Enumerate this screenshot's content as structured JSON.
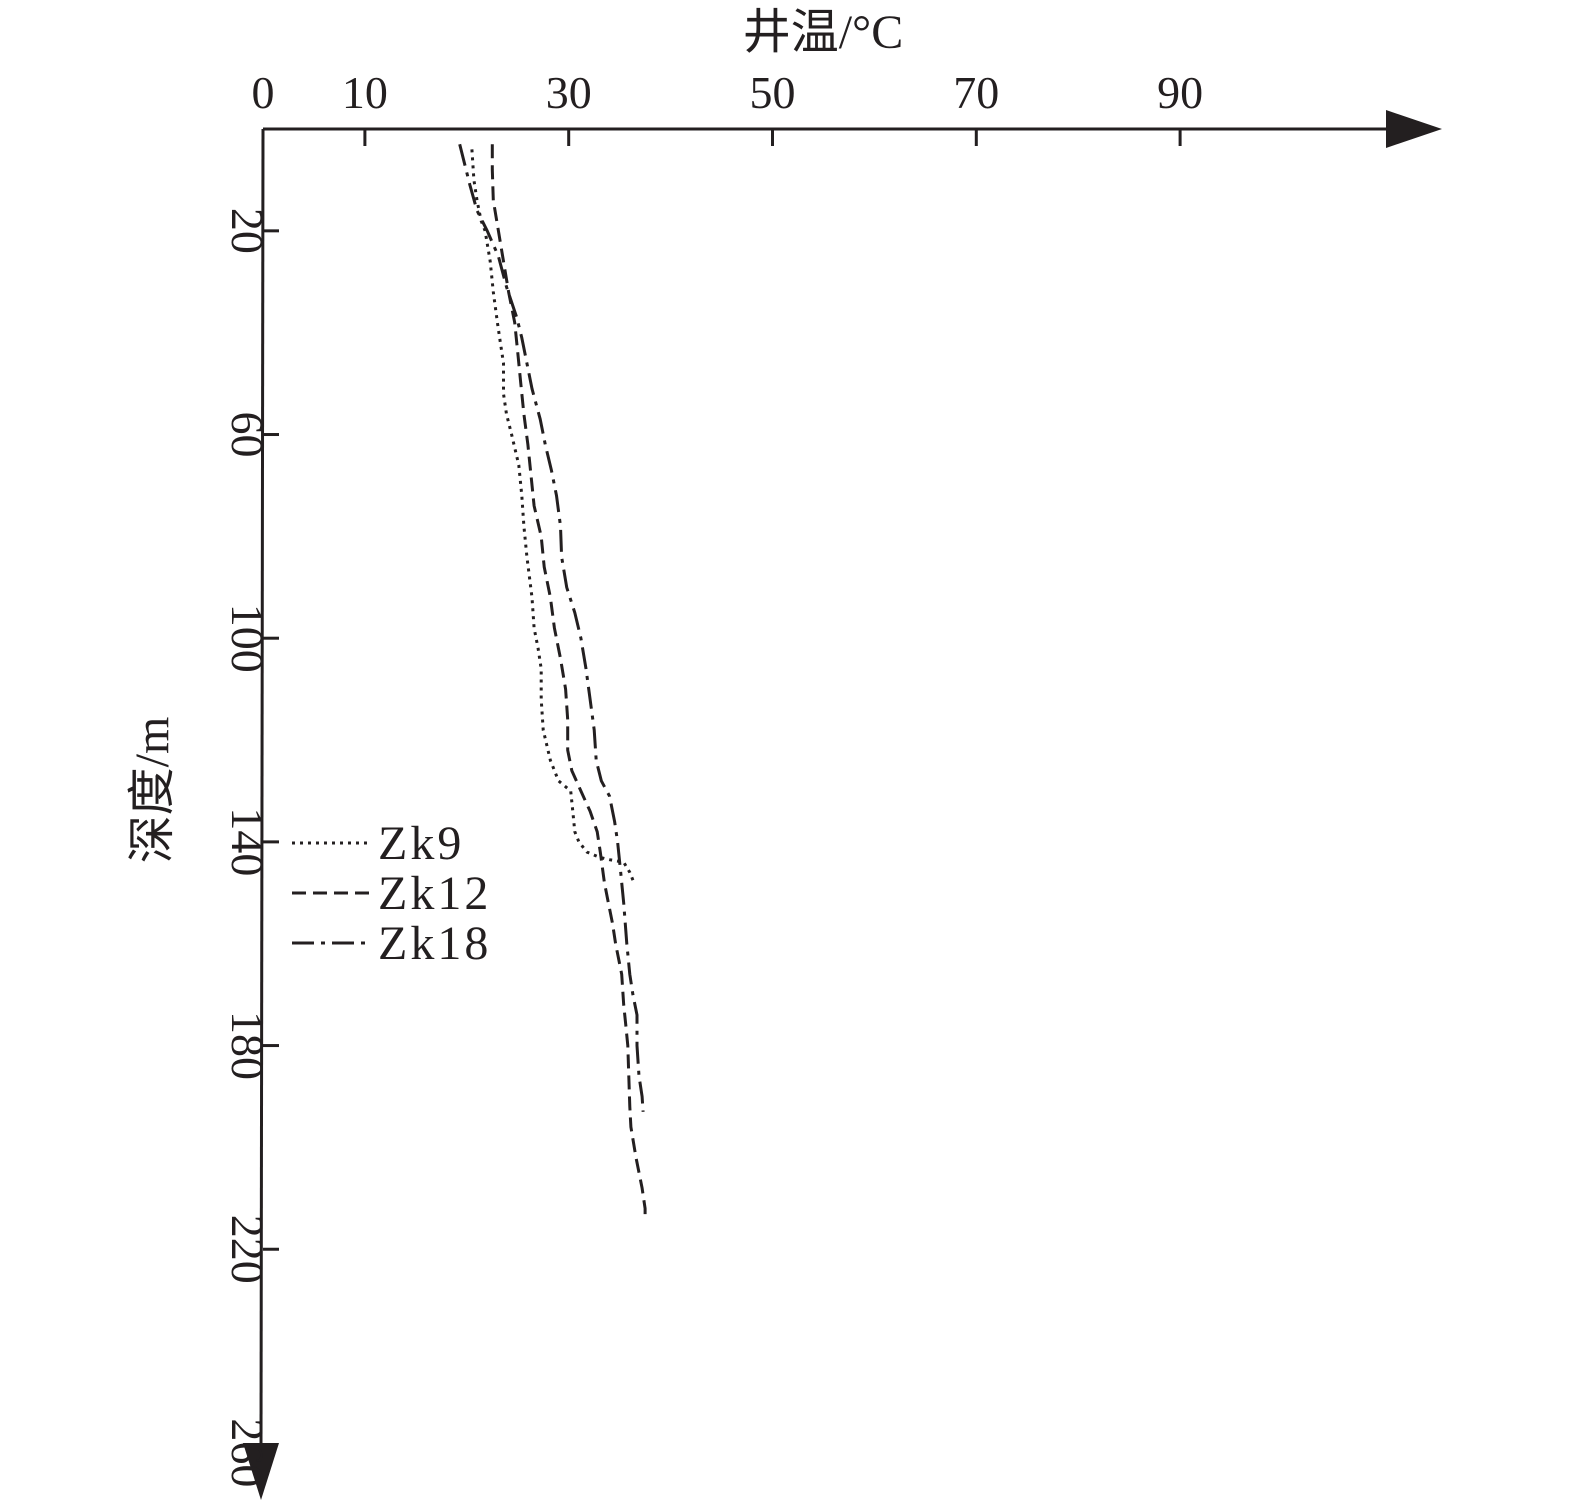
{
  "chart_data": {
    "type": "line",
    "title": "",
    "xlabel": "井温/°C",
    "ylabel": "深度/m",
    "x_axis_position": "top",
    "y_axis_inverted": true,
    "xlim": [
      0,
      117
    ],
    "ylim": [
      0,
      260
    ],
    "x_ticks": [
      0,
      10,
      30,
      50,
      70,
      90
    ],
    "y_ticks": [
      20,
      60,
      100,
      140,
      180,
      220,
      260
    ],
    "grid": false,
    "legend_position": "left-middle",
    "series": [
      {
        "name": "Zk9",
        "style": "dotted",
        "color": "#231f20",
        "points": [
          [
            20.5,
            4
          ],
          [
            20.7,
            10
          ],
          [
            21.0,
            14
          ],
          [
            21.4,
            18
          ],
          [
            21.8,
            20
          ],
          [
            22.3,
            26
          ],
          [
            22.6,
            32
          ],
          [
            23.0,
            38
          ],
          [
            23.3,
            42
          ],
          [
            23.6,
            46
          ],
          [
            23.6,
            52
          ],
          [
            23.9,
            56
          ],
          [
            24.4,
            60
          ],
          [
            25.1,
            66
          ],
          [
            25.4,
            72
          ],
          [
            25.6,
            78
          ],
          [
            25.9,
            84
          ],
          [
            26.4,
            92
          ],
          [
            26.6,
            98
          ],
          [
            27.0,
            102
          ],
          [
            27.3,
            106
          ],
          [
            27.3,
            112
          ],
          [
            27.5,
            118
          ],
          [
            28.2,
            124
          ],
          [
            29.0,
            128
          ],
          [
            30.2,
            130
          ],
          [
            30.4,
            134
          ],
          [
            30.6,
            138
          ],
          [
            31.0,
            140
          ],
          [
            31.8,
            142
          ],
          [
            33.0,
            143
          ],
          [
            34.0,
            143.5
          ],
          [
            35.4,
            144
          ],
          [
            36.0,
            146
          ],
          [
            36.4,
            148
          ]
        ]
      },
      {
        "name": "Zk12",
        "style": "dashed",
        "color": "#231f20",
        "points": [
          [
            22.5,
            3
          ],
          [
            22.5,
            8
          ],
          [
            22.6,
            14
          ],
          [
            23.1,
            20
          ],
          [
            23.6,
            26
          ],
          [
            24.1,
            32
          ],
          [
            24.7,
            38
          ],
          [
            25.0,
            44
          ],
          [
            25.3,
            50
          ],
          [
            25.6,
            56
          ],
          [
            26.0,
            62
          ],
          [
            26.3,
            68
          ],
          [
            26.6,
            74
          ],
          [
            27.3,
            80
          ],
          [
            27.6,
            86
          ],
          [
            28.2,
            92
          ],
          [
            28.6,
            98
          ],
          [
            29.2,
            104
          ],
          [
            29.7,
            110
          ],
          [
            29.9,
            116
          ],
          [
            29.9,
            122
          ],
          [
            30.3,
            126
          ],
          [
            31.2,
            130
          ],
          [
            32.1,
            134
          ],
          [
            32.8,
            138
          ],
          [
            33.1,
            142
          ],
          [
            33.5,
            148
          ],
          [
            33.9,
            152
          ],
          [
            34.3,
            156
          ],
          [
            34.6,
            160
          ],
          [
            35.2,
            166
          ],
          [
            35.4,
            172
          ],
          [
            35.6,
            176
          ],
          [
            35.8,
            180
          ],
          [
            35.9,
            186
          ],
          [
            36.0,
            192
          ],
          [
            36.1,
            196
          ],
          [
            36.6,
            202
          ],
          [
            37.2,
            208
          ],
          [
            37.5,
            212
          ],
          [
            37.5,
            214
          ]
        ]
      },
      {
        "name": "Zk18",
        "style": "dash-dot",
        "color": "#231f20",
        "points": [
          [
            19.3,
            3
          ],
          [
            19.8,
            7
          ],
          [
            20.3,
            11
          ],
          [
            21.0,
            16
          ],
          [
            22.0,
            20
          ],
          [
            23.1,
            25
          ],
          [
            23.9,
            31
          ],
          [
            24.9,
            37
          ],
          [
            25.4,
            41
          ],
          [
            25.9,
            46
          ],
          [
            26.4,
            51
          ],
          [
            27.2,
            57
          ],
          [
            27.7,
            62
          ],
          [
            28.3,
            67
          ],
          [
            28.8,
            72
          ],
          [
            29.2,
            78
          ],
          [
            29.3,
            84
          ],
          [
            29.8,
            90
          ],
          [
            30.6,
            95
          ],
          [
            31.2,
            100
          ],
          [
            31.7,
            106
          ],
          [
            32.1,
            112
          ],
          [
            32.5,
            118
          ],
          [
            32.7,
            124
          ],
          [
            33.2,
            128
          ],
          [
            34.0,
            131
          ],
          [
            34.5,
            136
          ],
          [
            34.8,
            140
          ],
          [
            35.1,
            146
          ],
          [
            35.4,
            152
          ],
          [
            35.7,
            160
          ],
          [
            36.0,
            166
          ],
          [
            36.3,
            170
          ],
          [
            36.7,
            174
          ],
          [
            36.7,
            180
          ],
          [
            36.9,
            186
          ],
          [
            37.2,
            190
          ],
          [
            37.3,
            193
          ]
        ]
      }
    ]
  }
}
